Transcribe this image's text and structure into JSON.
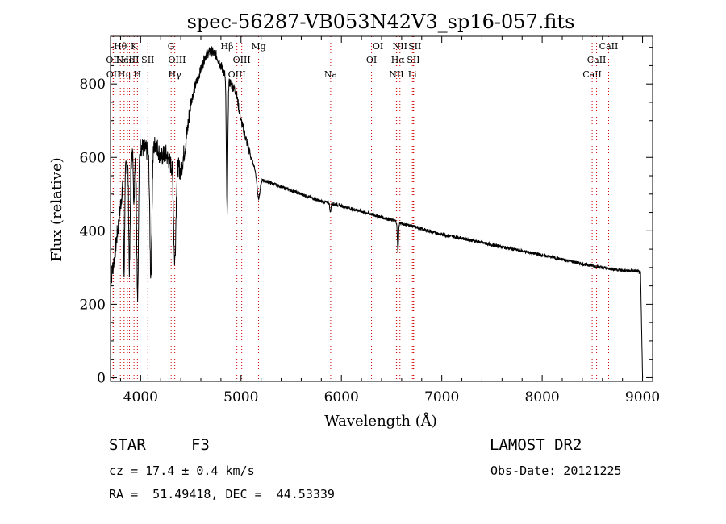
{
  "chart_data": {
    "type": "line",
    "title": "spec-56287-VB053N42V3_sp16-057.fits",
    "xlabel": "Wavelength (Å)",
    "ylabel": "Flux (relative)",
    "xlim": [
      3700,
      9100
    ],
    "ylim": [
      -10,
      930
    ],
    "xticks": [
      4000,
      5000,
      6000,
      7000,
      8000,
      9000
    ],
    "yticks": [
      0,
      200,
      400,
      600,
      800
    ],
    "line_color": "#000000",
    "marker_color": "#cc0000",
    "anchors": [
      [
        3700,
        260
      ],
      [
        3740,
        330
      ],
      [
        3780,
        420
      ],
      [
        3820,
        520
      ],
      [
        3860,
        580
      ],
      [
        3900,
        600
      ],
      [
        3950,
        610
      ],
      [
        4000,
        630
      ],
      [
        4050,
        620
      ],
      [
        4100,
        610
      ],
      [
        4150,
        640
      ],
      [
        4200,
        600
      ],
      [
        4250,
        610
      ],
      [
        4300,
        580
      ],
      [
        4350,
        590
      ],
      [
        4400,
        560
      ],
      [
        4450,
        640
      ],
      [
        4500,
        750
      ],
      [
        4550,
        800
      ],
      [
        4600,
        840
      ],
      [
        4650,
        880
      ],
      [
        4700,
        890
      ],
      [
        4750,
        880
      ],
      [
        4800,
        850
      ],
      [
        4850,
        820
      ],
      [
        4900,
        800
      ],
      [
        4950,
        780
      ],
      [
        5000,
        700
      ],
      [
        5050,
        650
      ],
      [
        5100,
        600
      ],
      [
        5150,
        560
      ],
      [
        5200,
        540
      ],
      [
        5300,
        530
      ],
      [
        5400,
        520
      ],
      [
        5500,
        510
      ],
      [
        5600,
        500
      ],
      [
        5700,
        490
      ],
      [
        5800,
        480
      ],
      [
        5900,
        475
      ],
      [
        6000,
        468
      ],
      [
        6100,
        460
      ],
      [
        6200,
        453
      ],
      [
        6300,
        445
      ],
      [
        6400,
        437
      ],
      [
        6500,
        430
      ],
      [
        6600,
        420
      ],
      [
        6700,
        413
      ],
      [
        6800,
        405
      ],
      [
        6900,
        397
      ],
      [
        7000,
        390
      ],
      [
        7200,
        380
      ],
      [
        7400,
        368
      ],
      [
        7600,
        356
      ],
      [
        7800,
        345
      ],
      [
        8000,
        334
      ],
      [
        8200,
        322
      ],
      [
        8400,
        310
      ],
      [
        8600,
        300
      ],
      [
        8800,
        292
      ],
      [
        8950,
        290
      ],
      [
        8980,
        285
      ],
      [
        9000,
        0
      ]
    ],
    "absorption": [
      {
        "x": 3835,
        "depth": 260,
        "width": 8
      },
      {
        "x": 3889,
        "depth": 300,
        "width": 10
      },
      {
        "x": 3934,
        "depth": 150,
        "width": 6
      },
      {
        "x": 3970,
        "depth": 390,
        "width": 12
      },
      {
        "x": 4102,
        "depth": 330,
        "width": 14
      },
      {
        "x": 4340,
        "depth": 270,
        "width": 16
      },
      {
        "x": 4861,
        "depth": 360,
        "width": 10
      },
      {
        "x": 5175,
        "depth": 60,
        "width": 20
      },
      {
        "x": 5890,
        "depth": 25,
        "width": 8
      },
      {
        "x": 6563,
        "depth": 80,
        "width": 8
      }
    ],
    "line_markers": [
      {
        "x": 3726,
        "label": "OII",
        "row": 2
      },
      {
        "x": 3729,
        "label": "OII",
        "row": 3
      },
      {
        "x": 3798,
        "label": "Hθ",
        "row": 1
      },
      {
        "x": 3835,
        "label": "Hη",
        "row": 3
      },
      {
        "x": 3869,
        "label": "NeIII",
        "row": 2
      },
      {
        "x": 3889,
        "label": "HeI",
        "row": 2
      },
      {
        "x": 3934,
        "label": "K",
        "row": 1
      },
      {
        "x": 3968,
        "label": "H",
        "row": 3
      },
      {
        "x": 4072,
        "label": "SII",
        "row": 2
      },
      {
        "x": 4304,
        "label": "G",
        "row": 1
      },
      {
        "x": 4340,
        "label": "Hγ",
        "row": 3
      },
      {
        "x": 4363,
        "label": "OIII",
        "row": 2
      },
      {
        "x": 4861,
        "label": "Hβ",
        "row": 1
      },
      {
        "x": 4959,
        "label": "OIII",
        "row": 3
      },
      {
        "x": 5007,
        "label": "OIII",
        "row": 2
      },
      {
        "x": 5175,
        "label": "Mg",
        "row": 1
      },
      {
        "x": 5893,
        "label": "Na",
        "row": 3
      },
      {
        "x": 6300,
        "label": "OI",
        "row": 2
      },
      {
        "x": 6364,
        "label": "OI",
        "row": 1
      },
      {
        "x": 6548,
        "label": "NII",
        "row": 3
      },
      {
        "x": 6563,
        "label": "Hα",
        "row": 2
      },
      {
        "x": 6583,
        "label": "NII",
        "row": 1
      },
      {
        "x": 6707,
        "label": "Li",
        "row": 3
      },
      {
        "x": 6717,
        "label": "SII",
        "row": 2
      },
      {
        "x": 6731,
        "label": "SII",
        "row": 1
      },
      {
        "x": 8498,
        "label": "CaII",
        "row": 3
      },
      {
        "x": 8542,
        "label": "CaII",
        "row": 2
      },
      {
        "x": 8662,
        "label": "CaII",
        "row": 1
      }
    ]
  },
  "info": {
    "class": "STAR",
    "subclass": "F3",
    "survey": "LAMOST DR2",
    "cz": "cz = 17.4 ± 0.4 km/s",
    "obs_date": "Obs-Date: 20121225",
    "radec": "RA =  51.49418, DEC =  44.53339"
  }
}
